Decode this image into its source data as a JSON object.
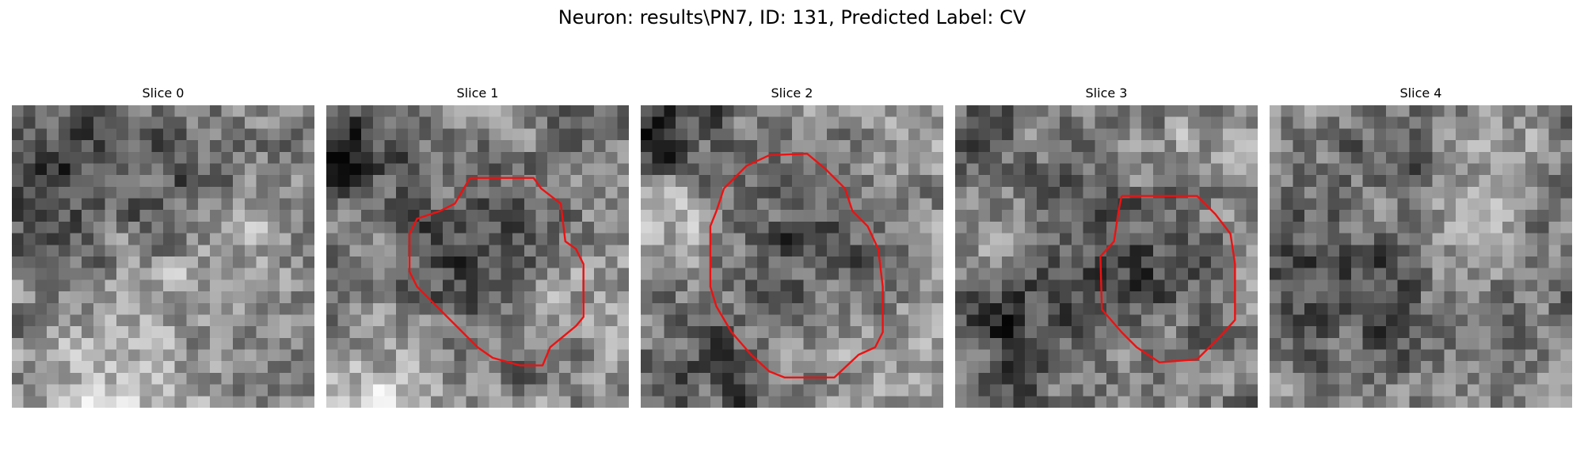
{
  "title": "Neuron: results\\PN7, ID: 131, Predicted Label: CV",
  "outline_color": "#ee1111",
  "slices": [
    {
      "label": "Slice 0",
      "dark_blobs": [
        [
          3,
          5,
          3.5,
          1.0
        ],
        [
          12,
          6,
          3.0,
          0.6
        ]
      ],
      "bright_blobs": [
        [
          9,
          24,
          5.5,
          0.7
        ],
        [
          20,
          12,
          4.0,
          0.35
        ]
      ],
      "outline": null
    },
    {
      "label": "Slice 1",
      "dark_blobs": [
        [
          1,
          3,
          3.5,
          0.9
        ],
        [
          12,
          12,
          5.0,
          0.75
        ]
      ],
      "bright_blobs": [
        [
          4,
          24,
          5.0,
          0.7
        ],
        [
          22,
          16,
          4.0,
          0.4
        ]
      ],
      "outline": [
        [
          9.5,
          4.8
        ],
        [
          13.7,
          4.8
        ],
        [
          14.2,
          5.5
        ],
        [
          15.5,
          6.5
        ],
        [
          15.8,
          9
        ],
        [
          16.5,
          9.5
        ],
        [
          17,
          10.5
        ],
        [
          17,
          14
        ],
        [
          16.5,
          14.6
        ],
        [
          14.8,
          16
        ],
        [
          14.3,
          17.2
        ],
        [
          12.8,
          17.2
        ],
        [
          11,
          16.7
        ],
        [
          10,
          16
        ],
        [
          9,
          15
        ],
        [
          7.5,
          13.5
        ],
        [
          6,
          12
        ],
        [
          5.5,
          11
        ],
        [
          5.5,
          8.5
        ],
        [
          6,
          7.5
        ],
        [
          7.5,
          7
        ],
        [
          8.5,
          6.5
        ]
      ]
    },
    {
      "label": "Slice 2",
      "dark_blobs": [
        [
          1,
          1,
          3.5,
          1.0
        ],
        [
          13,
          11,
          5.0,
          0.6
        ],
        [
          5,
          22,
          4.0,
          0.5
        ]
      ],
      "bright_blobs": [
        [
          3,
          9,
          3.5,
          0.7
        ],
        [
          22,
          20,
          4.0,
          0.5
        ],
        [
          24,
          3,
          3.0,
          0.5
        ]
      ],
      "outline": [
        [
          8.5,
          3.3
        ],
        [
          11,
          3.2
        ],
        [
          12.2,
          4.2
        ],
        [
          13.5,
          5.5
        ],
        [
          14,
          7
        ],
        [
          15,
          8
        ],
        [
          15.7,
          9.5
        ],
        [
          16,
          12
        ],
        [
          16,
          15
        ],
        [
          15.5,
          16
        ],
        [
          14.4,
          16.5
        ],
        [
          12.8,
          18
        ],
        [
          9.5,
          18
        ],
        [
          8.5,
          17.6
        ],
        [
          7.3,
          16.5
        ],
        [
          6,
          15
        ],
        [
          5,
          13.3
        ],
        [
          4.6,
          12
        ],
        [
          4.6,
          8
        ],
        [
          5,
          7
        ],
        [
          5.5,
          5.5
        ],
        [
          7,
          4
        ]
      ]
    },
    {
      "label": "Slice 3",
      "dark_blobs": [
        [
          4,
          18,
          4.0,
          0.85
        ],
        [
          15,
          12,
          4.5,
          0.7
        ],
        [
          2,
          1,
          2.5,
          0.5
        ]
      ],
      "bright_blobs": [
        [
          2,
          10,
          3.0,
          0.5
        ],
        [
          19,
          4,
          3.5,
          0.4
        ]
      ],
      "outline": [
        [
          11,
          6
        ],
        [
          16,
          6
        ],
        [
          17.2,
          7.2
        ],
        [
          18.2,
          8.5
        ],
        [
          18.5,
          10.5
        ],
        [
          18.5,
          14.2
        ],
        [
          17.5,
          15.3
        ],
        [
          16,
          16.8
        ],
        [
          13.5,
          17
        ],
        [
          12,
          16
        ],
        [
          11,
          15
        ],
        [
          9.7,
          13.5
        ],
        [
          9.6,
          10
        ],
        [
          10.5,
          9
        ],
        [
          10.8,
          7
        ]
      ]
    },
    {
      "label": "Slice 4",
      "dark_blobs": [
        [
          2,
          13,
          3.5,
          0.7
        ],
        [
          9,
          17,
          4.0,
          0.6
        ],
        [
          10,
          3,
          3.0,
          0.4
        ]
      ],
      "bright_blobs": [
        [
          16,
          10,
          4.0,
          0.35
        ],
        [
          20,
          2,
          3.0,
          0.3
        ]
      ],
      "outline": null
    }
  ]
}
